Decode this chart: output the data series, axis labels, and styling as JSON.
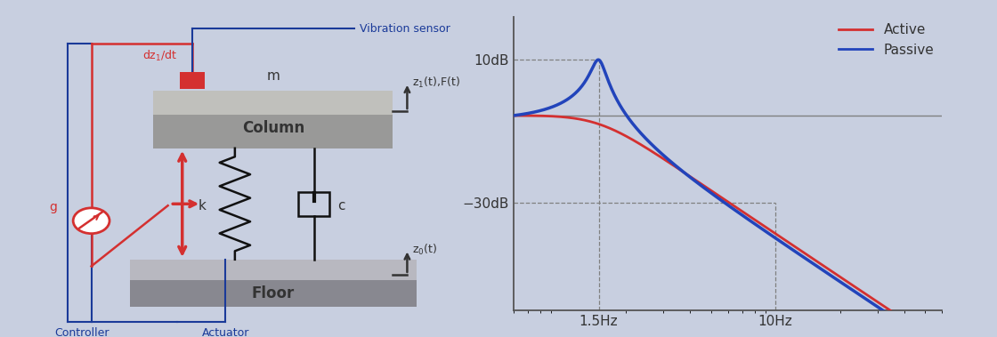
{
  "bg_color": "#c8cfe0",
  "active_color": "#d43030",
  "passive_color": "#2244bb",
  "label_10dB": "10dB",
  "label_m30dB": "−30dB",
  "label_1_5Hz": "1.5Hz",
  "label_10Hz": "10Hz",
  "legend_active": "Active",
  "legend_passive": "Passive",
  "red_color": "#d43030",
  "blue_color": "#1a3a99",
  "dark_color": "#333333"
}
